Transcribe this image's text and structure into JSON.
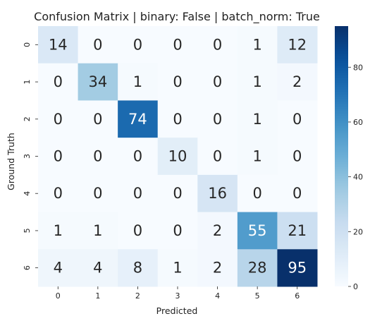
{
  "chart_data": {
    "type": "heatmap",
    "title": "Confusion Matrix | binary: False | batch_norm: True",
    "xlabel": "Predicted",
    "ylabel": "Ground Truth",
    "x_categories": [
      "0",
      "1",
      "2",
      "3",
      "4",
      "5",
      "6"
    ],
    "y_categories": [
      "0",
      "1",
      "2",
      "3",
      "4",
      "5",
      "6"
    ],
    "values": [
      [
        14,
        0,
        0,
        0,
        0,
        1,
        12
      ],
      [
        0,
        34,
        1,
        0,
        0,
        1,
        2
      ],
      [
        0,
        0,
        74,
        0,
        0,
        1,
        0
      ],
      [
        0,
        0,
        0,
        10,
        0,
        1,
        0
      ],
      [
        0,
        0,
        0,
        0,
        16,
        0,
        0
      ],
      [
        1,
        1,
        0,
        0,
        2,
        55,
        21
      ],
      [
        4,
        4,
        8,
        1,
        2,
        28,
        95
      ]
    ],
    "colormap": "Blues",
    "vmin": 0,
    "vmax": 95,
    "colorbar_ticks": [
      "0",
      "20",
      "40",
      "60",
      "80"
    ],
    "colors": {
      "low": "#f7fbff",
      "high": "#08306b"
    }
  }
}
